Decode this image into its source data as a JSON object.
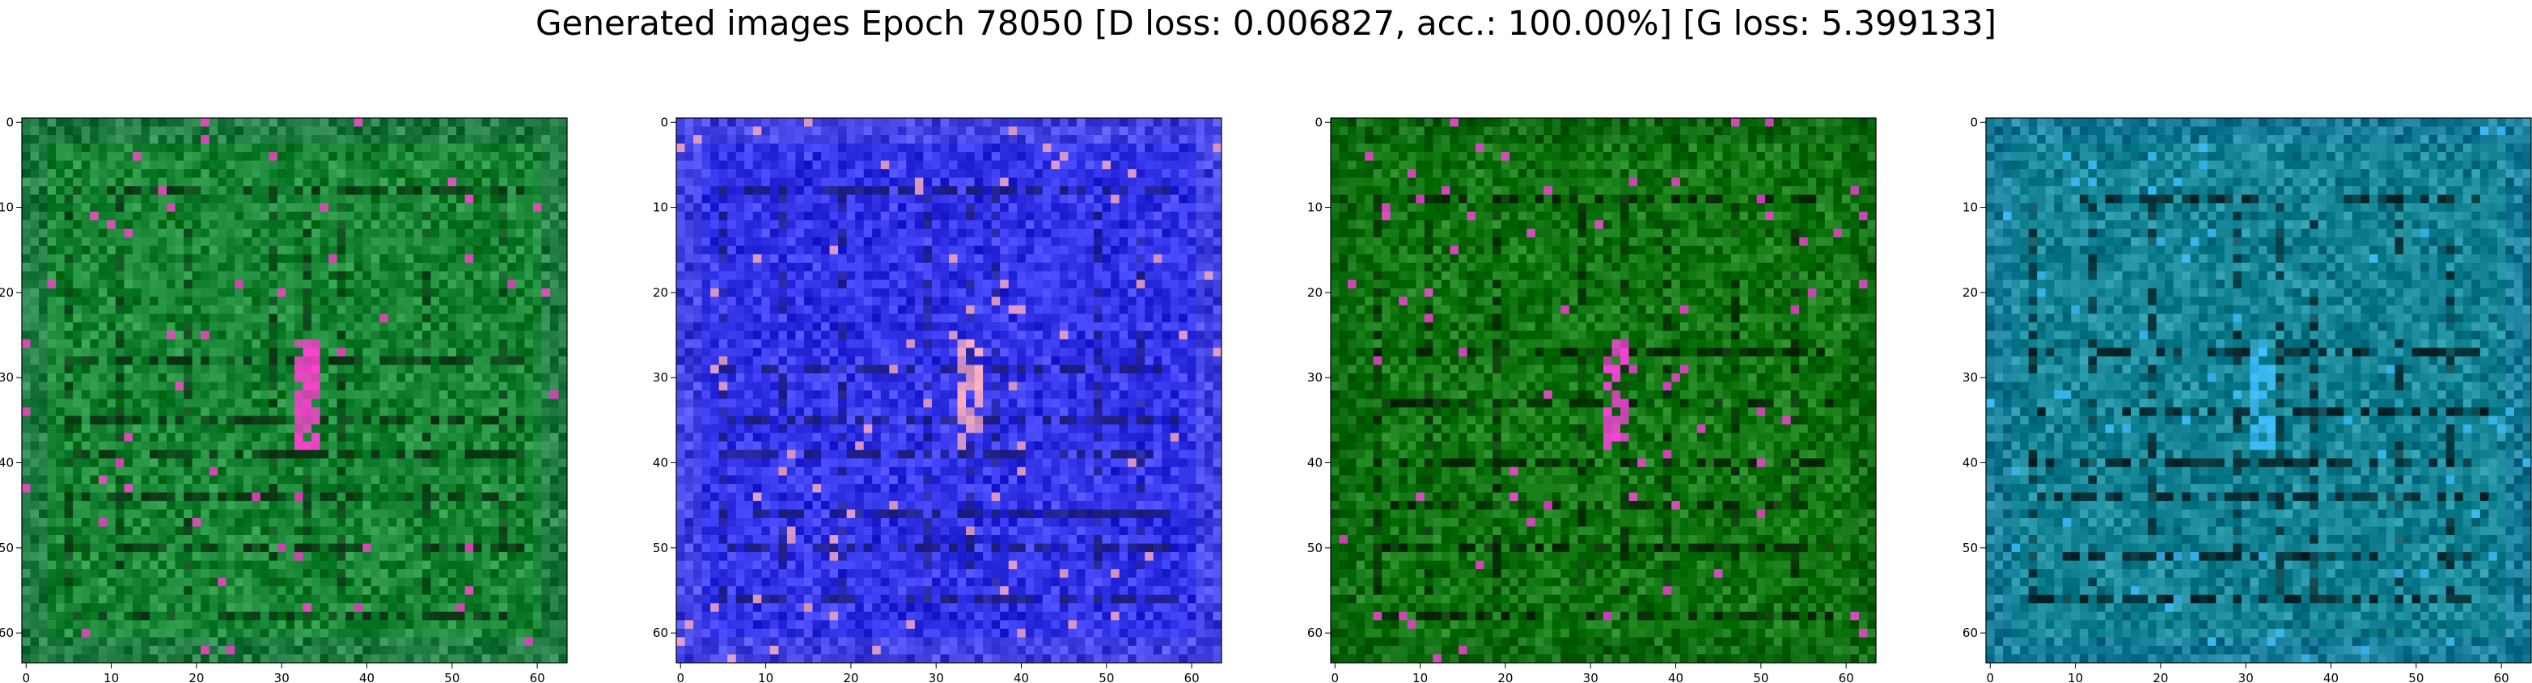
{
  "title": "Generated images Epoch 78050 [D loss: 0.006827, acc.: 100.00%] [G loss: 5.399133]",
  "chart_data": [
    {
      "type": "heatmap",
      "description": "generated 64x64 RGB image, predominantly green",
      "xlim": [
        -0.5,
        63.5
      ],
      "ylim": [
        63.5,
        -0.5
      ],
      "grid": false,
      "x_ticks": [
        0,
        10,
        20,
        30,
        40,
        50,
        60
      ],
      "y_ticks": [
        0,
        10,
        20,
        30,
        40,
        50,
        60
      ],
      "colors": {
        "base": "#1e8c3a",
        "border": "#2a7f4f",
        "accent": "#ff40d0",
        "dark": "#0a2a10"
      }
    },
    {
      "type": "heatmap",
      "description": "generated 64x64 RGB image, predominantly blue",
      "xlim": [
        -0.5,
        63.5
      ],
      "ylim": [
        63.5,
        -0.5
      ],
      "grid": false,
      "x_ticks": [
        0,
        10,
        20,
        30,
        40,
        50,
        60
      ],
      "y_ticks": [
        0,
        10,
        20,
        30,
        40,
        50,
        60
      ],
      "colors": {
        "base": "#3c3cf0",
        "border": "#5050e8",
        "accent": "#ffb0c0",
        "dark": "#1a1a70"
      }
    },
    {
      "type": "heatmap",
      "description": "generated 64x64 RGB image, predominantly green",
      "xlim": [
        -0.5,
        63.5
      ],
      "ylim": [
        63.5,
        -0.5
      ],
      "grid": false,
      "x_ticks": [
        0,
        10,
        20,
        30,
        40,
        50,
        60
      ],
      "y_ticks": [
        0,
        10,
        20,
        30,
        40,
        50,
        60
      ],
      "colors": {
        "base": "#157a15",
        "border": "#0f6a12",
        "accent": "#ff40e0",
        "dark": "#051a05"
      }
    },
    {
      "type": "heatmap",
      "description": "generated 64x64 RGB image, predominantly teal",
      "xlim": [
        -0.5,
        63.5
      ],
      "ylim": [
        63.5,
        -0.5
      ],
      "grid": false,
      "x_ticks": [
        0,
        10,
        20,
        30,
        40,
        50,
        60
      ],
      "y_ticks": [
        0,
        10,
        20,
        30,
        40,
        50,
        60
      ],
      "colors": {
        "base": "#1a8a9a",
        "border": "#1d7fa0",
        "accent": "#40c0ff",
        "dark": "#051518"
      }
    }
  ]
}
